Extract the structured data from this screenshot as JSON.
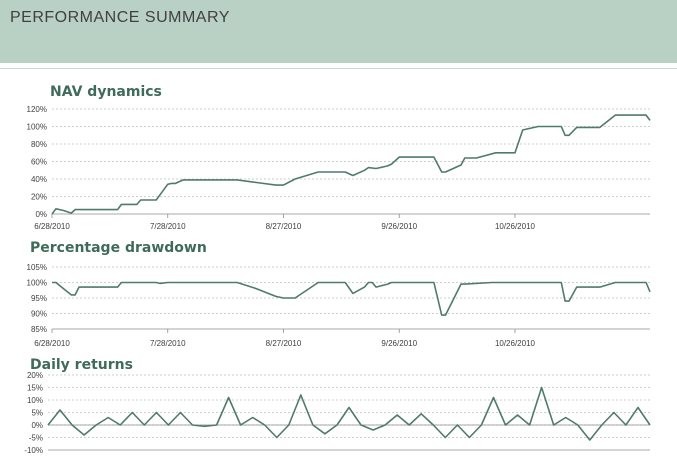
{
  "header": {
    "title": "PERFORMANCE SUMMARY"
  },
  "colors": {
    "header_bg": "#b9d1c5",
    "line": "#4f7b6b",
    "title": "#3f6b5a",
    "grid": "#bfbfbf"
  },
  "chart_data": [
    {
      "type": "line",
      "title": "NAV dynamics",
      "xlabel": "",
      "ylabel": "",
      "x_range": [
        "2010-06-28",
        "2010-11-30"
      ],
      "x_ticks": [
        "6/28/2010",
        "7/28/2010",
        "8/27/2010",
        "9/26/2010",
        "10/26/2010"
      ],
      "y_ticks": [
        "0%",
        "20%",
        "40%",
        "60%",
        "80%",
        "100%",
        "120%"
      ],
      "ylim": [
        0,
        120
      ],
      "grid": true,
      "series": [
        {
          "x": [
            "2010-06-28",
            "2010-06-29",
            "2010-07-01",
            "2010-07-03",
            "2010-07-04",
            "2010-07-05",
            "2010-07-10",
            "2010-07-15",
            "2010-07-16",
            "2010-07-20",
            "2010-07-21",
            "2010-07-25",
            "2010-07-26",
            "2010-07-28",
            "2010-07-29",
            "2010-07-30",
            "2010-08-01",
            "2010-08-06",
            "2010-08-07",
            "2010-08-15",
            "2010-08-20",
            "2010-08-25",
            "2010-08-27",
            "2010-08-30",
            "2010-09-05",
            "2010-09-12",
            "2010-09-14",
            "2010-09-17",
            "2010-09-18",
            "2010-09-20",
            "2010-09-23",
            "2010-09-24",
            "2010-09-26",
            "2010-10-05",
            "2010-10-07",
            "2010-10-08",
            "2010-10-12",
            "2010-10-13",
            "2010-10-16",
            "2010-10-21",
            "2010-10-25",
            "2010-10-26",
            "2010-10-28",
            "2010-11-01",
            "2010-11-07",
            "2010-11-08",
            "2010-11-09",
            "2010-11-11",
            "2010-11-16",
            "2010-11-17",
            "2010-11-21",
            "2010-11-29",
            "2010-11-30"
          ],
          "y": [
            0,
            6,
            4,
            1,
            5,
            5,
            5,
            5,
            11,
            11,
            16,
            16,
            22,
            34,
            35,
            35,
            39,
            39,
            39,
            39,
            36,
            33,
            33,
            40,
            48,
            48,
            44,
            50,
            53,
            52,
            55,
            57,
            65,
            65,
            48,
            48,
            56,
            64,
            64,
            70,
            70,
            70,
            96,
            100,
            100,
            90,
            90,
            99,
            99,
            99,
            113,
            113,
            107
          ]
        }
      ]
    },
    {
      "type": "line",
      "title": "Percentage drawdown",
      "xlabel": "",
      "ylabel": "",
      "x_range": [
        "2010-06-28",
        "2010-11-30"
      ],
      "x_ticks": [
        "6/28/2010",
        "7/28/2010",
        "8/27/2010",
        "9/26/2010",
        "10/26/2010"
      ],
      "y_ticks": [
        "85%",
        "90%",
        "95%",
        "100%",
        "105%"
      ],
      "ylim": [
        85,
        105
      ],
      "grid": true,
      "series": [
        {
          "x": [
            "2010-06-28",
            "2010-06-29",
            "2010-07-01",
            "2010-07-03",
            "2010-07-04",
            "2010-07-05",
            "2010-07-10",
            "2010-07-15",
            "2010-07-16",
            "2010-07-20",
            "2010-07-25",
            "2010-07-26",
            "2010-07-28",
            "2010-08-01",
            "2010-08-15",
            "2010-08-20",
            "2010-08-25",
            "2010-08-27",
            "2010-08-30",
            "2010-09-05",
            "2010-09-12",
            "2010-09-14",
            "2010-09-17",
            "2010-09-18",
            "2010-09-19",
            "2010-09-20",
            "2010-09-23",
            "2010-09-24",
            "2010-10-05",
            "2010-10-07",
            "2010-10-08",
            "2010-10-12",
            "2010-10-13",
            "2010-10-20",
            "2010-11-07",
            "2010-11-08",
            "2010-11-09",
            "2010-11-11",
            "2010-11-16",
            "2010-11-17",
            "2010-11-21",
            "2010-11-29",
            "2010-11-30"
          ],
          "y": [
            100,
            100,
            98,
            96,
            96,
            98.5,
            98.5,
            98.5,
            100,
            100,
            100,
            99.7,
            100,
            100,
            100,
            98,
            95.5,
            95,
            95,
            100,
            100,
            96.5,
            98.5,
            100,
            100,
            98.5,
            99.5,
            100,
            100,
            89.5,
            89.5,
            99.5,
            99.5,
            100,
            100,
            94,
            94,
            98.5,
            98.5,
            98.5,
            100,
            100,
            97
          ]
        }
      ]
    },
    {
      "type": "line",
      "title": "Daily returns",
      "xlabel": "",
      "ylabel": "",
      "x_range": [
        0,
        50
      ],
      "y_ticks": [
        "-10%",
        "-5%",
        "0%",
        "5%",
        "10%",
        "15%",
        "20%"
      ],
      "ylim": [
        -10,
        20
      ],
      "grid": true,
      "series": [
        {
          "x": [
            0,
            1,
            2,
            3,
            4,
            5,
            6,
            7,
            8,
            9,
            10,
            11,
            12,
            13,
            14,
            15,
            16,
            17,
            18,
            19,
            20,
            21,
            22,
            23,
            24,
            25,
            26,
            27,
            28,
            29,
            30,
            31,
            32,
            33,
            34,
            35,
            36,
            37,
            38,
            39,
            40,
            41,
            42,
            43,
            44,
            45,
            46,
            47,
            48,
            49,
            50
          ],
          "y": [
            0,
            6,
            0,
            -4,
            0,
            3,
            0,
            5,
            0,
            5,
            0,
            5,
            0,
            -0.5,
            0,
            11,
            0,
            3,
            0,
            -5,
            0,
            12,
            0,
            -3.5,
            0,
            7,
            0,
            -2,
            0,
            4,
            0,
            4.5,
            0,
            -5,
            0,
            -5,
            0,
            11,
            0,
            4,
            0,
            15,
            0,
            3,
            0,
            -6,
            0,
            5,
            0,
            7,
            0
          ]
        }
      ]
    }
  ]
}
